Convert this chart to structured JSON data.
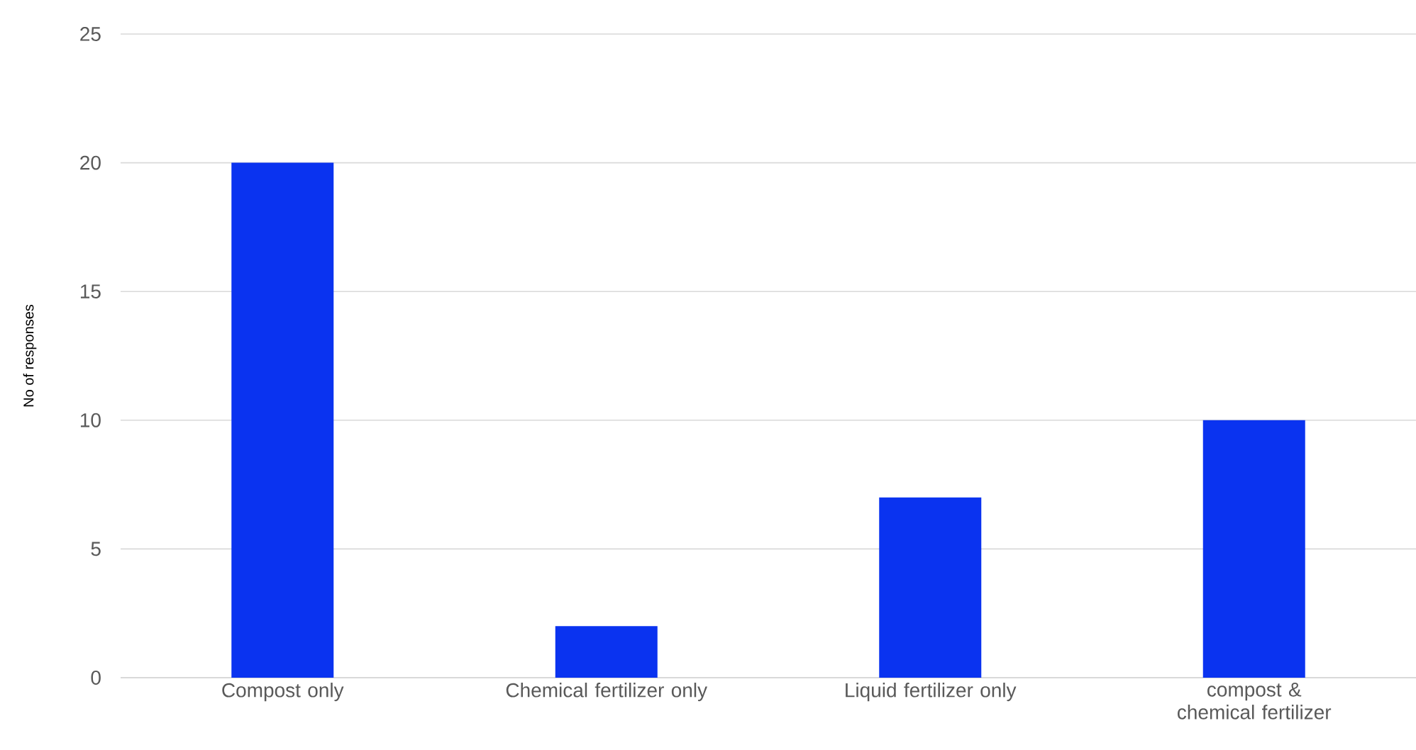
{
  "chart_data": {
    "type": "bar",
    "ylabel": "No of responses",
    "categories": [
      "Compost only",
      "Chemical fertilizer only",
      "Liquid fertilizer only",
      "compost & chemical fertilizer"
    ],
    "values": [
      20,
      2,
      7,
      10
    ],
    "color": "#0a33f0",
    "ylim": [
      0,
      25
    ],
    "yticks": [
      0,
      5,
      10,
      15,
      20,
      25
    ],
    "grid": "y"
  }
}
